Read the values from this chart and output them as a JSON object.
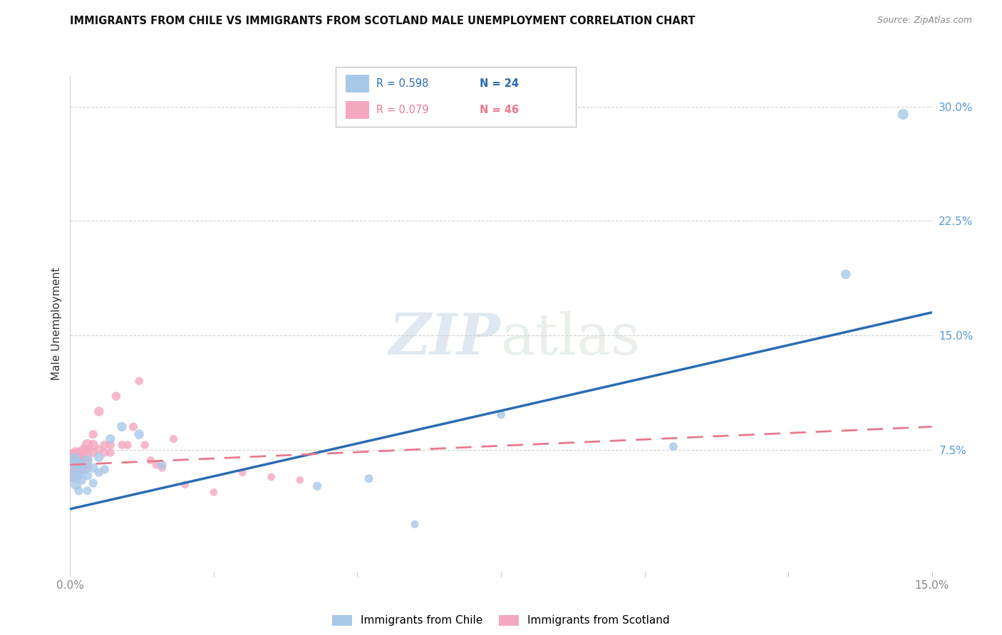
{
  "title": "IMMIGRANTS FROM CHILE VS IMMIGRANTS FROM SCOTLAND MALE UNEMPLOYMENT CORRELATION CHART",
  "source": "Source: ZipAtlas.com",
  "ylabel": "Male Unemployment",
  "xlim": [
    0.0,
    0.15
  ],
  "ylim": [
    -0.005,
    0.32
  ],
  "chile_color": "#a8c8e8",
  "scotland_color": "#f4a8c0",
  "chile_line_color": "#2b6cb0",
  "scotland_line_color": "#e87a8e",
  "background": "#ffffff",
  "ytick_vals": [
    0.075,
    0.15,
    0.225,
    0.3
  ],
  "ytick_labels": [
    "7.5%",
    "15.0%",
    "22.5%",
    "30.0%"
  ],
  "chile_x": [
    0.0008,
    0.0008,
    0.001,
    0.001,
    0.0012,
    0.0015,
    0.0015,
    0.002,
    0.002,
    0.0025,
    0.003,
    0.003,
    0.003,
    0.004,
    0.004,
    0.005,
    0.005,
    0.006,
    0.007,
    0.009,
    0.012,
    0.016,
    0.043,
    0.052,
    0.06,
    0.075,
    0.105,
    0.135,
    0.145
  ],
  "chile_y": [
    0.068,
    0.057,
    0.063,
    0.052,
    0.066,
    0.058,
    0.048,
    0.065,
    0.055,
    0.062,
    0.068,
    0.058,
    0.048,
    0.063,
    0.053,
    0.07,
    0.06,
    0.062,
    0.082,
    0.09,
    0.085,
    0.065,
    0.051,
    0.056,
    0.026,
    0.098,
    0.077,
    0.19,
    0.295
  ],
  "chile_sizes": [
    200,
    150,
    160,
    120,
    140,
    100,
    80,
    120,
    90,
    100,
    110,
    90,
    75,
    95,
    80,
    95,
    80,
    80,
    90,
    95,
    95,
    80,
    80,
    75,
    65,
    75,
    75,
    95,
    120
  ],
  "scotland_x": [
    0.0005,
    0.0005,
    0.0005,
    0.0007,
    0.0007,
    0.0007,
    0.001,
    0.001,
    0.001,
    0.001,
    0.0012,
    0.0012,
    0.0012,
    0.0015,
    0.002,
    0.002,
    0.002,
    0.0025,
    0.003,
    0.003,
    0.003,
    0.003,
    0.004,
    0.004,
    0.004,
    0.005,
    0.005,
    0.006,
    0.006,
    0.007,
    0.007,
    0.008,
    0.009,
    0.01,
    0.011,
    0.012,
    0.013,
    0.014,
    0.015,
    0.016,
    0.018,
    0.02,
    0.025,
    0.03,
    0.035,
    0.04
  ],
  "scotland_y": [
    0.068,
    0.063,
    0.058,
    0.07,
    0.065,
    0.06,
    0.072,
    0.067,
    0.062,
    0.057,
    0.068,
    0.063,
    0.058,
    0.07,
    0.073,
    0.068,
    0.062,
    0.075,
    0.078,
    0.073,
    0.068,
    0.063,
    0.078,
    0.073,
    0.085,
    0.1,
    0.075,
    0.078,
    0.073,
    0.078,
    0.073,
    0.11,
    0.078,
    0.078,
    0.09,
    0.12,
    0.078,
    0.068,
    0.065,
    0.063,
    0.082,
    0.052,
    0.047,
    0.06,
    0.057,
    0.055
  ],
  "scotland_sizes": [
    500,
    350,
    200,
    250,
    180,
    120,
    200,
    160,
    120,
    90,
    160,
    120,
    90,
    130,
    150,
    120,
    90,
    110,
    140,
    110,
    90,
    80,
    110,
    90,
    80,
    95,
    80,
    85,
    75,
    80,
    70,
    80,
    70,
    70,
    75,
    70,
    68,
    65,
    65,
    65,
    65,
    62,
    60,
    60,
    60,
    58
  ],
  "chile_line_x": [
    0.0,
    0.15
  ],
  "chile_line_y": [
    0.036,
    0.165
  ],
  "scotland_line_x": [
    0.0,
    0.15
  ],
  "scotland_line_y": [
    0.065,
    0.09
  ]
}
